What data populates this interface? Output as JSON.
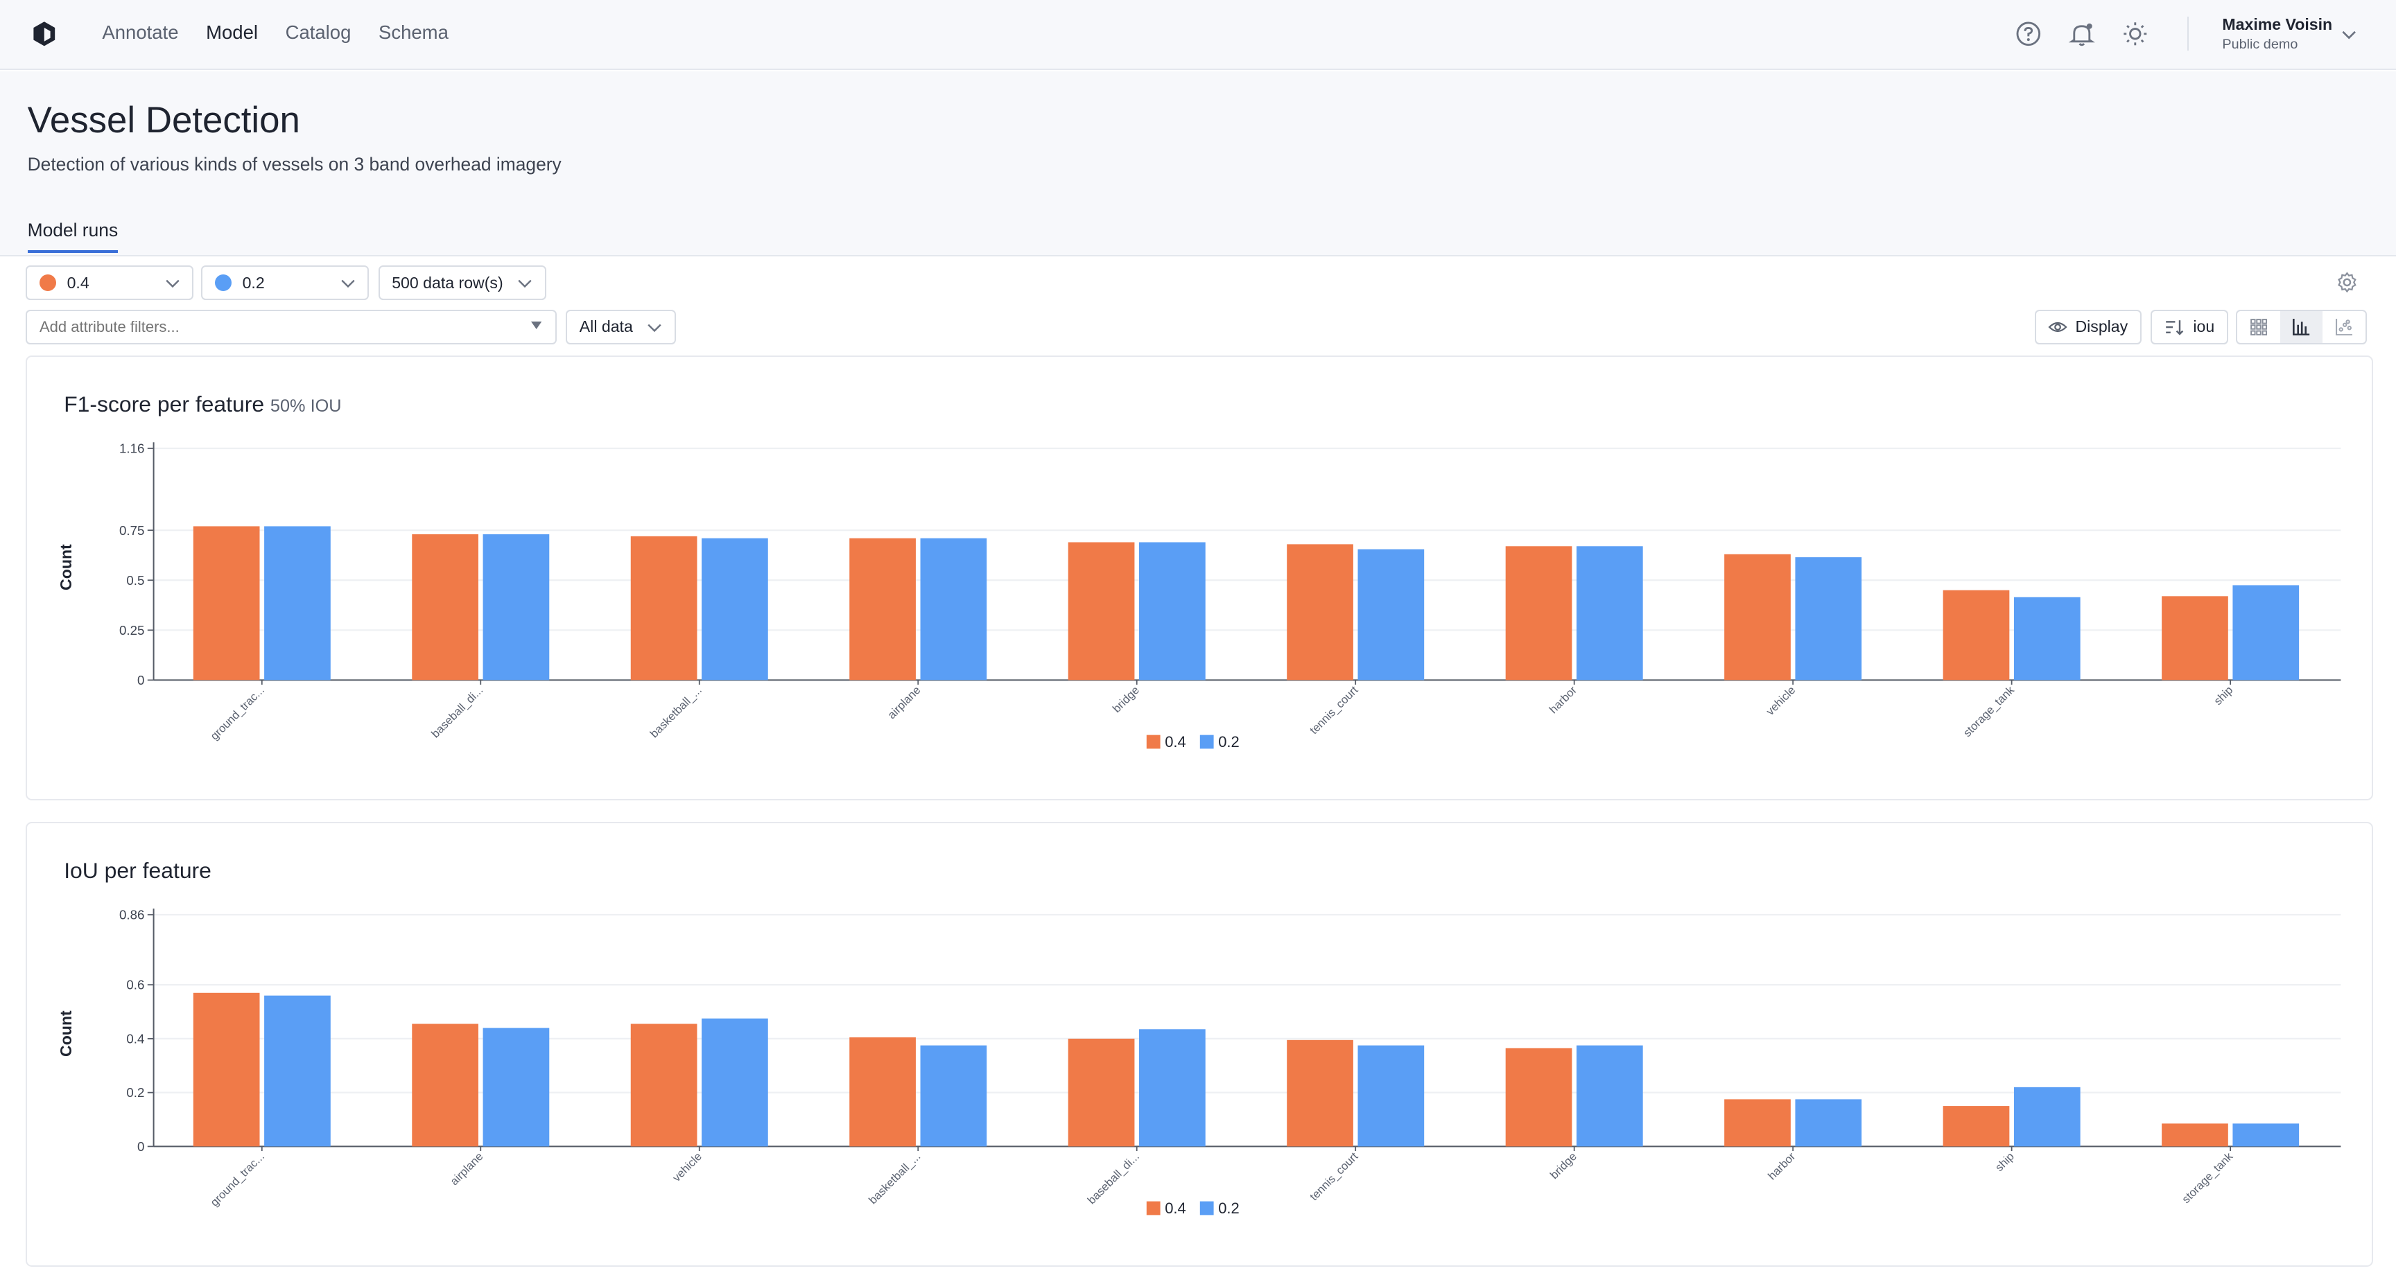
{
  "nav": {
    "items": [
      "Annotate",
      "Model",
      "Catalog",
      "Schema"
    ],
    "active": "Model"
  },
  "user": {
    "name": "Maxime Voisin",
    "org": "Public demo"
  },
  "page": {
    "title": "Vessel Detection",
    "description": "Detection of various kinds of vessels on 3 band overhead imagery",
    "tab": "Model runs"
  },
  "controls": {
    "run_a": {
      "label": "0.4",
      "color": "#f07a48"
    },
    "run_b": {
      "label": "0.2",
      "color": "#5a9ef5"
    },
    "rows": "500 data row(s)",
    "filter_placeholder": "Add attribute filters...",
    "data_scope": "All data",
    "display": "Display",
    "sort": "iou"
  },
  "colors": {
    "series_a": "#f07a48",
    "series_b": "#5a9ef5"
  },
  "chart_data": [
    {
      "type": "bar",
      "title": "F1-score per feature",
      "subtitle": "50% IOU",
      "xlabel": "",
      "ylabel": "Count",
      "ylim": [
        0,
        1.16
      ],
      "yticks": [
        "0",
        "0.25",
        "0.5",
        "0.75",
        "1.16"
      ],
      "ytick_values": [
        0,
        0.25,
        0.5,
        0.75,
        1.16
      ],
      "categories": [
        "ground_trac...",
        "baseball_di...",
        "basketball_...",
        "airplane",
        "bridge",
        "tennis_court",
        "harbor",
        "vehicle",
        "storage_tank",
        "ship"
      ],
      "series": [
        {
          "name": "0.4",
          "values": [
            0.77,
            0.73,
            0.72,
            0.71,
            0.69,
            0.68,
            0.67,
            0.63,
            0.45,
            0.42
          ]
        },
        {
          "name": "0.2",
          "values": [
            0.77,
            0.73,
            0.71,
            0.71,
            0.69,
            0.655,
            0.67,
            0.615,
            0.415,
            0.475
          ]
        }
      ],
      "legend": "bottom-center"
    },
    {
      "type": "bar",
      "title": "IoU per feature",
      "subtitle": "",
      "xlabel": "",
      "ylabel": "Count",
      "ylim": [
        0,
        0.86
      ],
      "yticks": [
        "0",
        "0.2",
        "0.4",
        "0.6",
        "0.86"
      ],
      "ytick_values": [
        0,
        0.2,
        0.4,
        0.6,
        0.86
      ],
      "categories": [
        "ground_trac...",
        "airplane",
        "vehicle",
        "basketball_...",
        "baseball_di...",
        "tennis_court",
        "bridge",
        "harbor",
        "ship",
        "storage_tank"
      ],
      "series": [
        {
          "name": "0.4",
          "values": [
            0.57,
            0.455,
            0.455,
            0.405,
            0.4,
            0.395,
            0.365,
            0.175,
            0.15,
            0.085
          ]
        },
        {
          "name": "0.2",
          "values": [
            0.56,
            0.44,
            0.475,
            0.375,
            0.435,
            0.375,
            0.375,
            0.175,
            0.22,
            0.085
          ]
        }
      ],
      "legend": "bottom-center"
    }
  ]
}
